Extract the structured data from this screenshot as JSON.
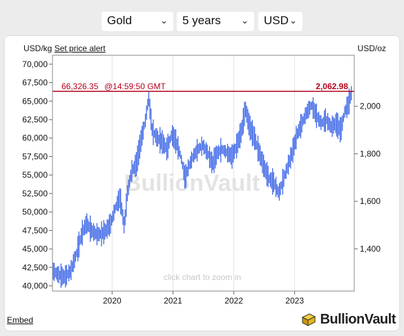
{
  "controls": {
    "metal": "Gold",
    "period": "5 years",
    "currency": "USD"
  },
  "header": {
    "left_unit": "USD/kg",
    "alert_link": "Set price alert",
    "right_unit": "USD/oz"
  },
  "current_price": {
    "kg_value": "66,326.35",
    "timestamp": "@14:59:50 GMT",
    "oz_value": "2,062.98",
    "kg_numeric": 66326.35
  },
  "watermark": "BullionVault",
  "zoom_hint": "click chart to zoom in",
  "footer": {
    "embed_link": "Embed",
    "brand": "BullionVault"
  },
  "colors": {
    "series": "#3f68e6",
    "price_line": "#b3001b",
    "gold_icon": "#e7b416"
  },
  "chart_data": {
    "type": "line",
    "title": "",
    "x_ticks": [
      {
        "label": "2020",
        "year": 2020.0
      },
      {
        "label": "2021",
        "year": 2021.0
      },
      {
        "label": "2022",
        "year": 2022.0
      },
      {
        "label": "2023",
        "year": 2023.0
      }
    ],
    "xlim": [
      2019.02,
      2023.98
    ],
    "left_axis": {
      "unit": "USD/kg",
      "ylim": [
        39300,
        71200
      ],
      "ticks": [
        "40,000",
        "42,500",
        "45,000",
        "47,500",
        "50,000",
        "52,500",
        "55,000",
        "57,500",
        "60,000",
        "62,500",
        "65,000",
        "67,500",
        "70,000"
      ],
      "tick_values": [
        40000,
        42500,
        45000,
        47500,
        50000,
        52500,
        55000,
        57500,
        60000,
        62500,
        65000,
        67500,
        70000
      ]
    },
    "right_axis": {
      "unit": "USD/oz",
      "ticks": [
        "1,400",
        "1,600",
        "1,800",
        "2,000"
      ],
      "tick_values": [
        1400,
        1600,
        1800,
        2000
      ]
    },
    "series": [
      {
        "x": [
          2019.03,
          2019.12,
          2019.22,
          2019.32,
          2019.42,
          2019.5,
          2019.58,
          2019.66,
          2019.74,
          2019.82,
          2019.9,
          2019.98,
          2020.05,
          2020.13,
          2020.2,
          2020.25,
          2020.32,
          2020.4,
          2020.47,
          2020.55,
          2020.6,
          2020.66,
          2020.74,
          2020.82,
          2020.9,
          2020.98,
          2021.05,
          2021.13,
          2021.2,
          2021.25,
          2021.33,
          2021.41,
          2021.49,
          2021.57,
          2021.65,
          2021.73,
          2021.81,
          2021.89,
          2021.97,
          2022.05,
          2022.13,
          2022.19,
          2022.26,
          2022.34,
          2022.42,
          2022.5,
          2022.58,
          2022.66,
          2022.74,
          2022.8,
          2022.88,
          2022.96,
          2023.04,
          2023.12,
          2023.2,
          2023.28,
          2023.36,
          2023.44,
          2023.52,
          2023.6,
          2023.68,
          2023.76,
          2023.82,
          2023.88,
          2023.94
        ],
        "y": [
          42000,
          41500,
          41200,
          42000,
          44500,
          47000,
          48500,
          47500,
          47000,
          47000,
          47500,
          48500,
          50500,
          52000,
          48000,
          52500,
          55500,
          56500,
          59500,
          62500,
          65500,
          61000,
          60000,
          59500,
          58500,
          60500,
          59500,
          57500,
          54500,
          56000,
          57500,
          58500,
          59000,
          58000,
          56500,
          58000,
          58500,
          58000,
          57500,
          59000,
          61000,
          64000,
          61500,
          60000,
          58000,
          56000,
          54500,
          54000,
          52500,
          54000,
          56000,
          58000,
          60500,
          62000,
          63500,
          64500,
          63000,
          62000,
          62500,
          61500,
          62000,
          61000,
          63500,
          64500,
          66300
        ]
      }
    ]
  }
}
